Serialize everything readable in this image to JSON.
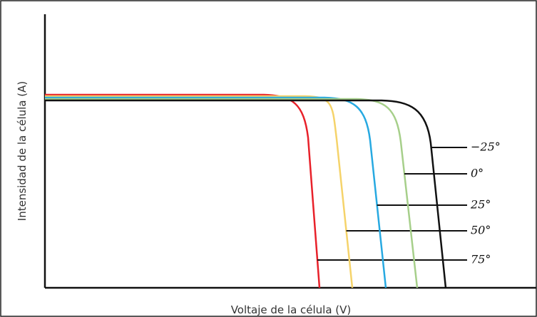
{
  "diagram": {
    "y_axis_label": "Intensidad de la célula (A)",
    "x_axis_label": "Voltaje de la célula (V)",
    "curves": [
      {
        "label": "75°",
        "color": "#e8212a"
      },
      {
        "label": "50°",
        "color": "#f5d36a"
      },
      {
        "label": "25°",
        "color": "#27a9e1"
      },
      {
        "label": "0°",
        "color": "#a6cf8a"
      },
      {
        "label": "−25°",
        "color": "#111111"
      }
    ]
  }
}
